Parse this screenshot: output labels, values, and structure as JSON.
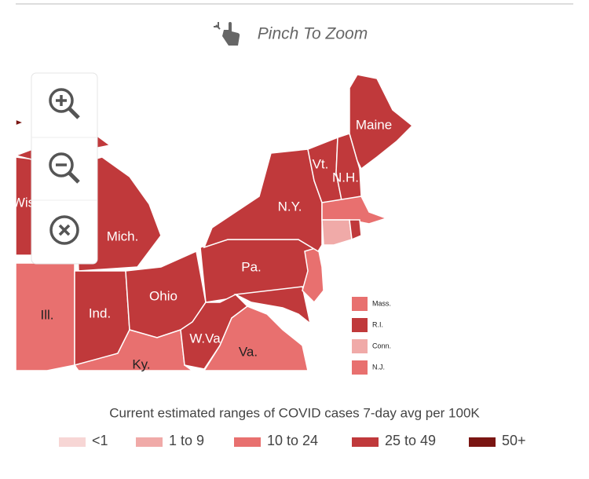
{
  "header": {
    "hint": "Pinch To Zoom"
  },
  "map_labels": [
    "Maine",
    "Vt.",
    "N.H.",
    "N.Y.",
    "Wis",
    "Mich.",
    "Pa.",
    "Ohio",
    "Ill.",
    "Ind.",
    "W.Va",
    "Va.",
    "Ky."
  ],
  "side_legend": [
    {
      "label": "Mass.",
      "color": "#e8706f"
    },
    {
      "label": "R.I.",
      "color": "#c0393b"
    },
    {
      "label": "Conn.",
      "color": "#f0aaa8"
    },
    {
      "label": "N.J.",
      "color": "#e8706f"
    }
  ],
  "legend": {
    "title": "Current estimated ranges of COVID cases 7-day avg per 100K",
    "items": [
      {
        "label": "<1",
        "color": "#f7d6d5"
      },
      {
        "label": "1 to 9",
        "color": "#f0aaa8"
      },
      {
        "label": "10 to 24",
        "color": "#e8706f"
      },
      {
        "label": "25 to 49",
        "color": "#c0393b"
      },
      {
        "label": "50+",
        "color": "#7a1512"
      }
    ]
  }
}
